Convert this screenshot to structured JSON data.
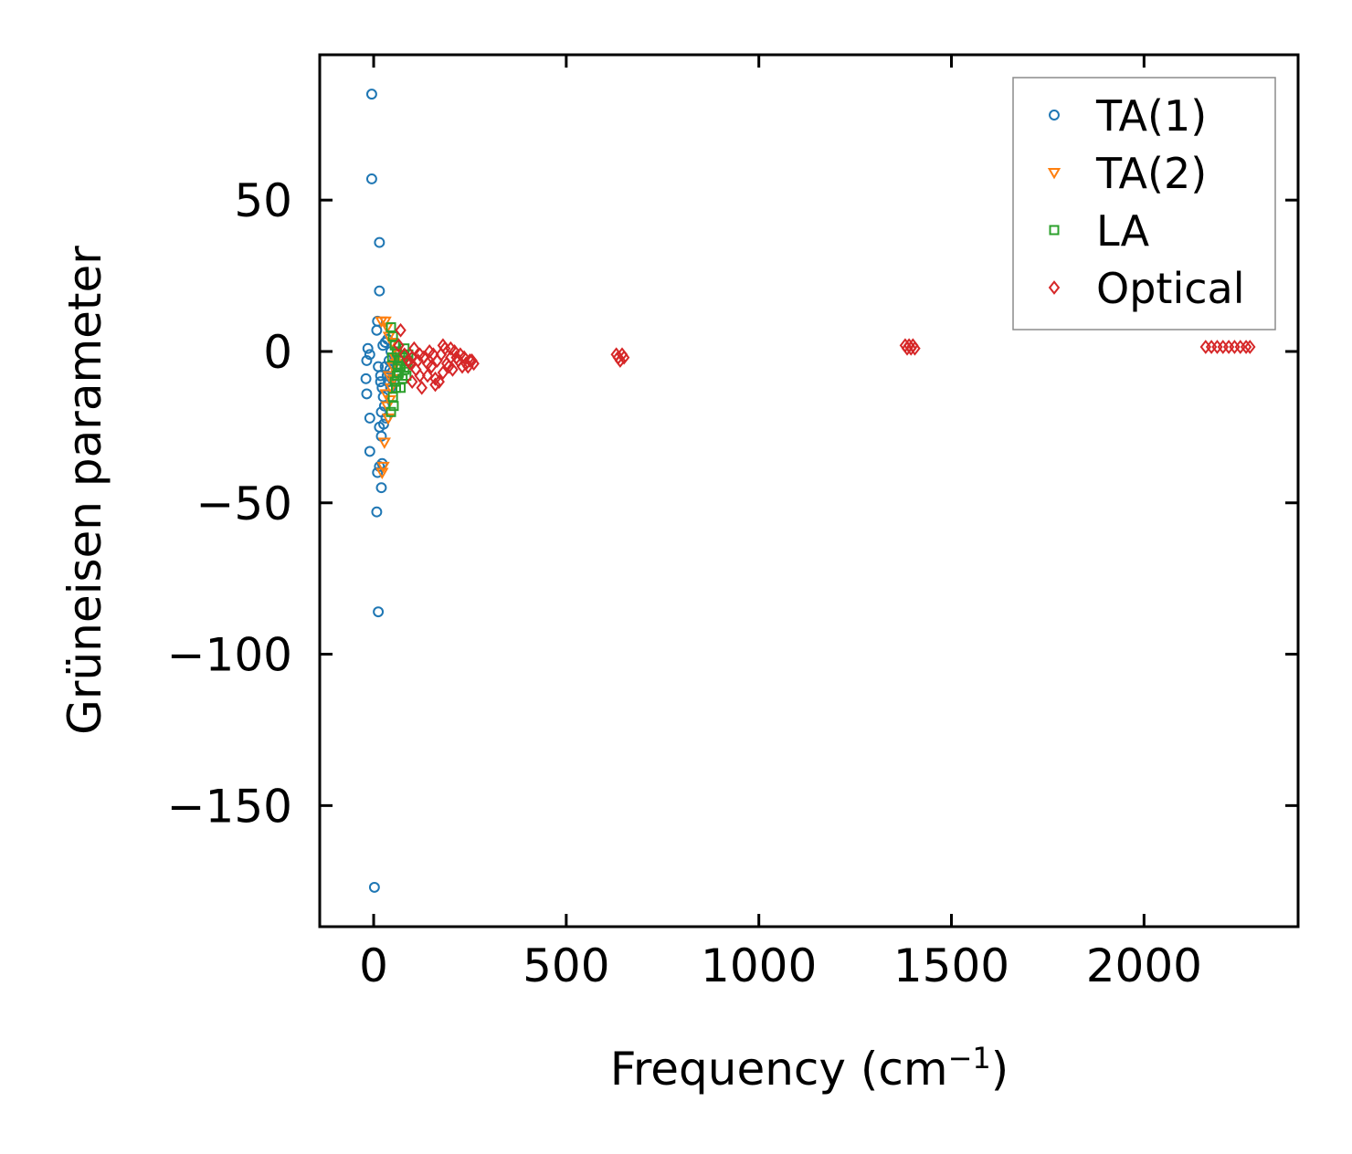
{
  "chart_data": {
    "type": "scatter",
    "title": "",
    "xlabel": "Frequency (cm",
    "xlabel_sup": "−1",
    "xlabel_close": ")",
    "ylabel": "Grüneisen parameter",
    "xlim": [
      -140,
      2400
    ],
    "ylim": [
      -190,
      98
    ],
    "xticks": [
      0,
      500,
      1000,
      1500,
      2000
    ],
    "xtick_labels": [
      "0",
      "500",
      "1000",
      "1500",
      "2000"
    ],
    "yticks": [
      50,
      0,
      -50,
      -100,
      -150
    ],
    "ytick_labels": [
      "50",
      "0",
      "−50",
      "−100",
      "−150"
    ],
    "legend_position": "top-right",
    "series": [
      {
        "name": "TA(1)",
        "marker": "circle",
        "color": "#1f77b4",
        "points": [
          [
            -5,
            85
          ],
          [
            -5,
            57
          ],
          [
            15,
            36
          ],
          [
            15,
            20
          ],
          [
            -15,
            1
          ],
          [
            -10,
            -1
          ],
          [
            -18,
            -3
          ],
          [
            -20,
            -9
          ],
          [
            -18,
            -14
          ],
          [
            -10,
            -22
          ],
          [
            -10,
            -33
          ],
          [
            8,
            -53
          ],
          [
            12,
            -86
          ],
          [
            2,
            -177
          ],
          [
            10,
            -40
          ],
          [
            15,
            -38
          ],
          [
            22,
            -37
          ],
          [
            20,
            -45
          ],
          [
            10,
            10
          ],
          [
            8,
            7
          ],
          [
            12,
            -5
          ],
          [
            18,
            -10
          ],
          [
            25,
            -15
          ],
          [
            20,
            -20
          ],
          [
            15,
            -25
          ],
          [
            20,
            -28
          ],
          [
            30,
            -5
          ],
          [
            35,
            -8
          ],
          [
            40,
            -3
          ],
          [
            45,
            0
          ],
          [
            30,
            3
          ],
          [
            22,
            -12
          ],
          [
            28,
            -18
          ],
          [
            38,
            -10
          ],
          [
            42,
            -6
          ],
          [
            50,
            -4
          ],
          [
            55,
            -2
          ],
          [
            32,
            -22
          ],
          [
            26,
            -24
          ],
          [
            18,
            -8
          ],
          [
            24,
            2
          ],
          [
            36,
            4
          ],
          [
            44,
            -12
          ],
          [
            48,
            -9
          ],
          [
            58,
            -7
          ],
          [
            60,
            -1
          ]
        ]
      },
      {
        "name": "TA(2)",
        "marker": "triangle-down",
        "color": "#ff7f0e",
        "points": [
          [
            20,
            10
          ],
          [
            30,
            10
          ],
          [
            35,
            8
          ],
          [
            40,
            5
          ],
          [
            28,
            -30
          ],
          [
            22,
            -40
          ],
          [
            25,
            -38
          ],
          [
            35,
            -18
          ],
          [
            45,
            -12
          ],
          [
            50,
            -5
          ],
          [
            55,
            -2
          ],
          [
            40,
            -8
          ],
          [
            32,
            -14
          ],
          [
            60,
            0
          ],
          [
            48,
            3
          ],
          [
            38,
            -22
          ],
          [
            42,
            -16
          ],
          [
            52,
            -9
          ],
          [
            58,
            -4
          ],
          [
            65,
            -1
          ]
        ]
      },
      {
        "name": "LA",
        "marker": "square",
        "color": "#2ca02c",
        "points": [
          [
            45,
            8
          ],
          [
            50,
            5
          ],
          [
            55,
            2
          ],
          [
            60,
            0
          ],
          [
            65,
            -3
          ],
          [
            70,
            -5
          ],
          [
            75,
            -2
          ],
          [
            80,
            -6
          ],
          [
            85,
            -4
          ],
          [
            90,
            -1
          ],
          [
            45,
            -20
          ],
          [
            50,
            -15
          ],
          [
            55,
            -10
          ],
          [
            60,
            -8
          ],
          [
            85,
            -8
          ],
          [
            70,
            -12
          ],
          [
            65,
            -7
          ],
          [
            75,
            -9
          ],
          [
            80,
            1
          ],
          [
            88,
            -3
          ],
          [
            52,
            -18
          ],
          [
            58,
            -12
          ],
          [
            62,
            -5
          ],
          [
            48,
            -2
          ]
        ]
      },
      {
        "name": "Optical",
        "marker": "diamond",
        "color": "#d62728",
        "points": [
          [
            70,
            7
          ],
          [
            65,
            2
          ],
          [
            80,
            -1
          ],
          [
            95,
            -4
          ],
          [
            110,
            -6
          ],
          [
            100,
            -10
          ],
          [
            120,
            -8
          ],
          [
            130,
            -2
          ],
          [
            150,
            -5
          ],
          [
            160,
            -9
          ],
          [
            170,
            -10
          ],
          [
            180,
            -7
          ],
          [
            190,
            -4
          ],
          [
            200,
            -2
          ],
          [
            210,
            0
          ],
          [
            220,
            -3
          ],
          [
            230,
            -5
          ],
          [
            240,
            -4
          ],
          [
            250,
            -3
          ],
          [
            260,
            -4
          ],
          [
            90,
            -3
          ],
          [
            105,
            1
          ],
          [
            115,
            -3
          ],
          [
            125,
            -12
          ],
          [
            140,
            -4
          ],
          [
            145,
            0
          ],
          [
            155,
            -1
          ],
          [
            165,
            -3
          ],
          [
            175,
            -1
          ],
          [
            185,
            1
          ],
          [
            195,
            -5
          ],
          [
            205,
            -6
          ],
          [
            215,
            -2
          ],
          [
            225,
            -1
          ],
          [
            235,
            -2
          ],
          [
            245,
            -5
          ],
          [
            255,
            -3
          ],
          [
            200,
            1
          ],
          [
            180,
            2
          ],
          [
            160,
            -11
          ],
          [
            140,
            -8
          ],
          [
            120,
            -1
          ],
          [
            100,
            -2
          ],
          [
            630,
            -1
          ],
          [
            635,
            -2
          ],
          [
            640,
            -3
          ],
          [
            645,
            -1
          ],
          [
            650,
            -2
          ],
          [
            1380,
            2
          ],
          [
            1385,
            1
          ],
          [
            1390,
            2
          ],
          [
            1395,
            1
          ],
          [
            1400,
            2
          ],
          [
            1405,
            1
          ],
          [
            2160,
            1.5
          ],
          [
            2175,
            1.5
          ],
          [
            2190,
            1.5
          ],
          [
            2205,
            1.5
          ],
          [
            2220,
            1.5
          ],
          [
            2235,
            1.5
          ],
          [
            2250,
            1.5
          ],
          [
            2265,
            1.5
          ],
          [
            2275,
            1.5
          ]
        ]
      }
    ]
  }
}
